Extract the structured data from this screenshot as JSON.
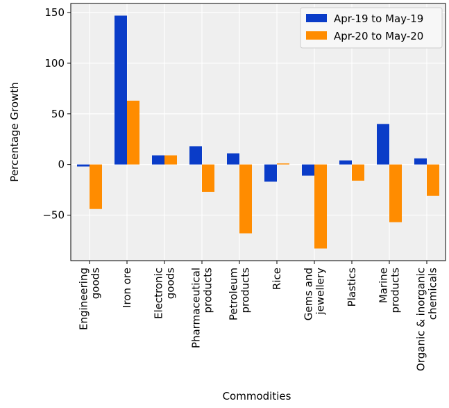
{
  "chart_data": {
    "type": "bar",
    "xlabel": "Commodities",
    "ylabel": "Percentage Growth",
    "categories": [
      "Engineering\ngoods",
      "Iron ore",
      "Electronic\ngoods",
      "Pharmaceutical\nproducts",
      "Petroleum\nproducts",
      "Rice",
      "Gems and\njewellery",
      "Plastics",
      "Marine\nproducts",
      "Organic & inorganic\nchemicals"
    ],
    "series": [
      {
        "name": "Apr-19 to May-19",
        "color": "#0a3cc8",
        "values": [
          -2,
          147,
          9,
          18,
          11,
          -17,
          -11,
          4,
          40,
          6
        ]
      },
      {
        "name": "Apr-20 to May-20",
        "color": "#ff8c00",
        "values": [
          -44,
          63,
          9,
          -27,
          -68,
          1,
          -83,
          -16,
          -57,
          -31
        ]
      }
    ],
    "ylim": [
      -95,
      159
    ],
    "yticks": [
      {
        "value": -50,
        "label": "−50"
      },
      0,
      50,
      100,
      150
    ],
    "grid": true,
    "legend": "upper right"
  }
}
